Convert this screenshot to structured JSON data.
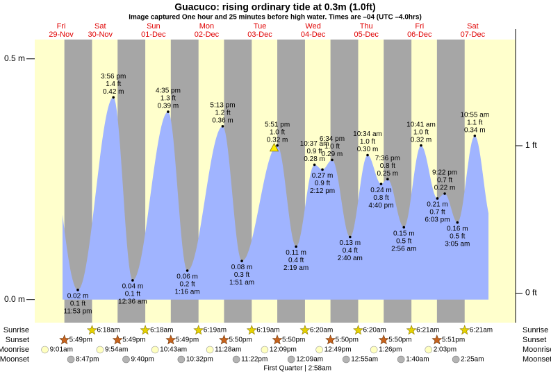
{
  "chart_data": {
    "type": "area",
    "title": "Guacuco: rising  ordinary tide at 0.3m (1.0ft)",
    "subtitle": "Image captured One hour and 25 minutes before high water. Times are –04 (UTC –4.0hrs)",
    "ylim": [
      -0.048,
      0.54
    ],
    "yticks": [
      {
        "value": 0.5,
        "label": "0.5 m"
      },
      {
        "value": 0,
        "label": "0.0 m"
      }
    ],
    "y2lim": [
      -0.2,
      1.72
    ],
    "y2ticks": [
      {
        "value": 1,
        "label": "1 ft"
      },
      {
        "value": 0,
        "label": "0 ft"
      }
    ],
    "color": "#a0b4ff",
    "row_labels": {
      "sunrise": "Sunrise",
      "sunset": "Sunset",
      "moonrise": "Moonrise",
      "moonset": "Moonset"
    },
    "days": [
      {
        "weekday": "Fri",
        "date": "29-Nov",
        "sunset": "5:49pm",
        "moonrise": "9:01am",
        "moonset": "8:47pm",
        "tides": [
          {
            "time": "11:53 pm",
            "m": 0.02,
            "m_label": "0.02 m",
            "ft": 0.1,
            "ft_label": "0.1 ft"
          }
        ]
      },
      {
        "weekday": "Sat",
        "date": "30-Nov",
        "sunrise": "6:18am",
        "sunset": "5:49pm",
        "moonrise": "9:54am",
        "moonset": "9:40pm",
        "tides": [
          {
            "time": "3:56 pm",
            "m": 0.42,
            "m_label": "0.42 m",
            "ft": 1.4,
            "ft_label": "1.4 ft"
          }
        ]
      },
      {
        "weekday": "Sun",
        "date": "01-Dec",
        "sunrise": "6:18am",
        "sunset": "5:49pm",
        "moonrise": "10:43am",
        "moonset": "10:32pm",
        "tides": [
          {
            "time": "12:36 am",
            "m": 0.04,
            "m_label": "0.04 m",
            "ft": 0.1,
            "ft_label": "0.1 ft"
          },
          {
            "time": "4:35 pm",
            "m": 0.39,
            "m_label": "0.39 m",
            "ft": 1.3,
            "ft_label": "1.3 ft"
          }
        ]
      },
      {
        "weekday": "Mon",
        "date": "02-Dec",
        "sunrise": "6:19am",
        "sunset": "5:50pm",
        "moonrise": "11:28am",
        "moonset": "11:22pm",
        "tides": [
          {
            "time": "1:16 am",
            "m": 0.06,
            "m_label": "0.06 m",
            "ft": 0.2,
            "ft_label": "0.2 ft"
          },
          {
            "time": "5:13 pm",
            "m": 0.36,
            "m_label": "0.36 m",
            "ft": 1.2,
            "ft_label": "1.2 ft"
          }
        ]
      },
      {
        "weekday": "Tue",
        "date": "03-Dec",
        "sunrise": "6:19am",
        "sunset": "5:50pm",
        "moonrise": "12:09pm",
        "tides": [
          {
            "time": "1:51 am",
            "m": 0.08,
            "m_label": "0.08 m",
            "ft": 0.3,
            "ft_label": "0.3 ft"
          },
          {
            "time": "5:51 pm",
            "m": 0.32,
            "m_label": "0.32 m",
            "ft": 1,
            "ft_label": "1.0 ft"
          }
        ]
      },
      {
        "weekday": "Wed",
        "date": "04-Dec",
        "sunrise": "6:20am",
        "sunset": "5:50pm",
        "moonrise": "12:49pm",
        "moonset": "12:09am",
        "moon_phase": "First Quarter | 2:58am",
        "tides": [
          {
            "time": "2:19 am",
            "m": 0.11,
            "m_label": "0.11 m",
            "ft": 0.4,
            "ft_label": "0.4 ft"
          },
          {
            "time": "10:37 am",
            "m": 0.28,
            "m_label": "0.28 m",
            "ft": 0.9,
            "ft_label": "0.9 ft"
          },
          {
            "time": "2:12 pm",
            "m": 0.27,
            "m_label": "0.27 m",
            "ft": 0.9,
            "ft_label": "0.9 ft"
          },
          {
            "time": "6:34 pm",
            "m": 0.29,
            "m_label": "0.29 m",
            "ft": 1,
            "ft_label": "1.0 ft"
          }
        ]
      },
      {
        "weekday": "Thu",
        "date": "05-Dec",
        "sunrise": "6:20am",
        "sunset": "5:50pm",
        "moonrise": "1:26pm",
        "moonset": "12:55am",
        "tides": [
          {
            "time": "2:40 am",
            "m": 0.13,
            "m_label": "0.13 m",
            "ft": 0.4,
            "ft_label": "0.4 ft"
          },
          {
            "time": "10:34 am",
            "m": 0.3,
            "m_label": "0.30 m",
            "ft": 1,
            "ft_label": "1.0 ft"
          },
          {
            "time": "4:40 pm",
            "m": 0.24,
            "m_label": "0.24 m",
            "ft": 0.8,
            "ft_label": "0.8 ft"
          },
          {
            "time": "7:36 pm",
            "m": 0.25,
            "m_label": "0.25 m",
            "ft": 0.8,
            "ft_label": "0.8 ft"
          }
        ]
      },
      {
        "weekday": "Fri",
        "date": "06-Dec",
        "sunrise": "6:21am",
        "sunset": "5:51pm",
        "moonrise": "2:03pm",
        "moonset": "1:40am",
        "tides": [
          {
            "time": "2:56 am",
            "m": 0.15,
            "m_label": "0.15 m",
            "ft": 0.5,
            "ft_label": "0.5 ft"
          },
          {
            "time": "10:41 am",
            "m": 0.32,
            "m_label": "0.32 m",
            "ft": 1,
            "ft_label": "1.0 ft"
          },
          {
            "time": "6:03 pm",
            "m": 0.21,
            "m_label": "0.21 m",
            "ft": 0.7,
            "ft_label": "0.7 ft"
          },
          {
            "time": "9:22 pm",
            "m": 0.22,
            "m_label": "0.22 m",
            "ft": 0.7,
            "ft_label": "0.7 ft"
          }
        ]
      },
      {
        "weekday": "Sat",
        "date": "07-Dec",
        "sunrise": "6:21am",
        "moonset": "2:25am",
        "tides": [
          {
            "time": "3:05 am",
            "m": 0.16,
            "m_label": "0.16 m",
            "ft": 0.5,
            "ft_label": "0.5 ft"
          },
          {
            "time": "10:55 am",
            "m": 0.34,
            "m_label": "0.34 m",
            "ft": 1.1,
            "ft_label": "1.1 ft"
          }
        ]
      }
    ]
  }
}
